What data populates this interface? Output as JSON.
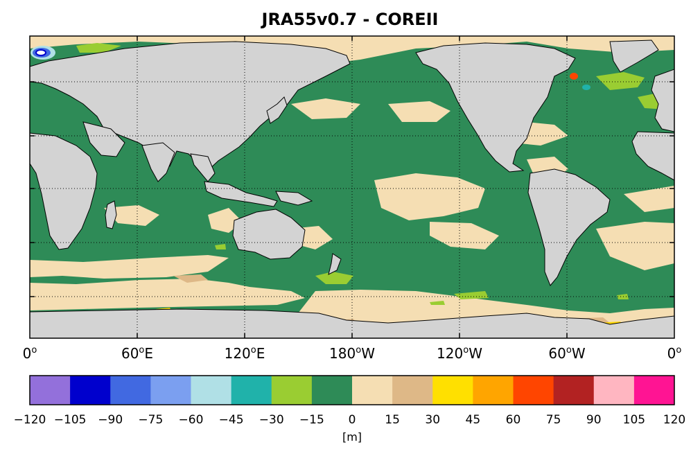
{
  "title": "JRA55v0.7 - COREII",
  "map": {
    "lon_ticks": [
      {
        "text": "0",
        "sup": "o",
        "dir": ""
      },
      {
        "text": "60",
        "sup": "o",
        "dir": "E"
      },
      {
        "text": "120",
        "sup": "o",
        "dir": "E"
      },
      {
        "text": "180",
        "sup": "o",
        "dir": "W"
      },
      {
        "text": "120",
        "sup": "o",
        "dir": "W"
      },
      {
        "text": "60",
        "sup": "o",
        "dir": "W"
      },
      {
        "text": "0",
        "sup": "o",
        "dir": ""
      }
    ],
    "colors": {
      "land": "#d3d3d3",
      "ocean_neg15_0": "#2e8b57",
      "ocean_0_15": "#f5deb3",
      "ocean_neg30_neg15": "#9acd32",
      "ocean_15_30": "#deb887",
      "ocean_30_45": "#ffd700"
    }
  },
  "colorbar": {
    "colors": [
      "#9370db",
      "#0000cd",
      "#4169e1",
      "#7b9ff0",
      "#b0e0e6",
      "#20b2aa",
      "#9acd32",
      "#2e8b57",
      "#f5deb3",
      "#deb887",
      "#ffe000",
      "#ffa500",
      "#ff4500",
      "#b22222",
      "#ffb6c1",
      "#ff1493"
    ],
    "ticks": [
      "−120",
      "−105",
      "−90",
      "−75",
      "−60",
      "−45",
      "−30",
      "−15",
      "0",
      "15",
      "30",
      "45",
      "60",
      "75",
      "90",
      "105",
      "120"
    ],
    "unit": "[m]"
  }
}
